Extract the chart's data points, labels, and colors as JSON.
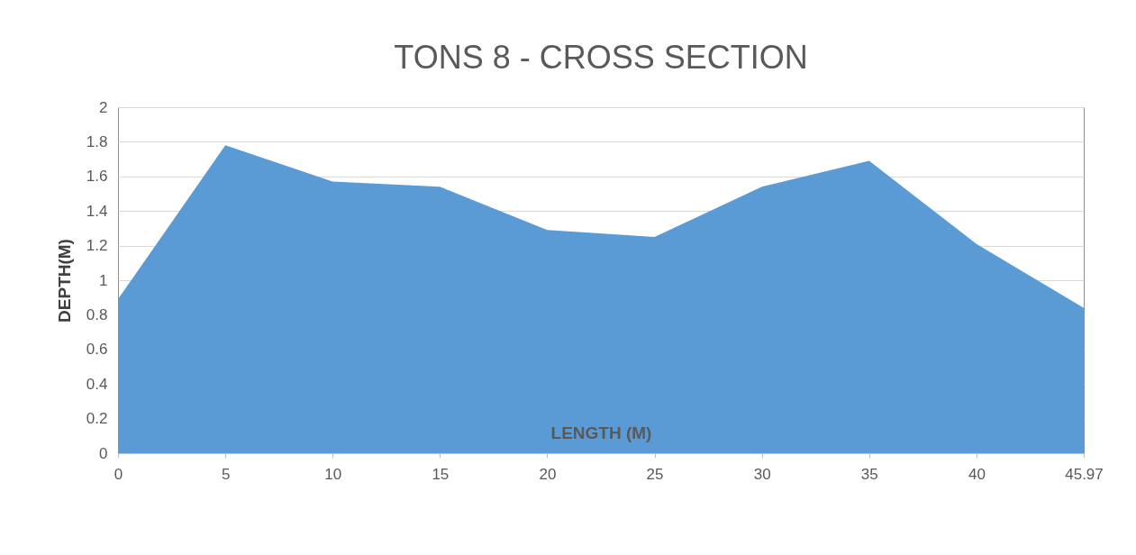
{
  "chart_data": {
    "type": "area",
    "title": "TONS 8 - CROSS SECTION",
    "xlabel": "LENGTH (M)",
    "ylabel": "DEPTH(M)",
    "categories": [
      "0",
      "5",
      "10",
      "15",
      "20",
      "25",
      "30",
      "35",
      "40",
      "45.97"
    ],
    "values": [
      0.89,
      1.78,
      1.57,
      1.54,
      1.29,
      1.25,
      1.54,
      1.69,
      1.21,
      0.84
    ],
    "color": "#5b9bd5",
    "ylim": [
      0,
      2
    ],
    "yticks": [
      0,
      0.2,
      0.4,
      0.6,
      0.8,
      1,
      1.2,
      1.4,
      1.6,
      1.8,
      2
    ],
    "grid": "y"
  }
}
